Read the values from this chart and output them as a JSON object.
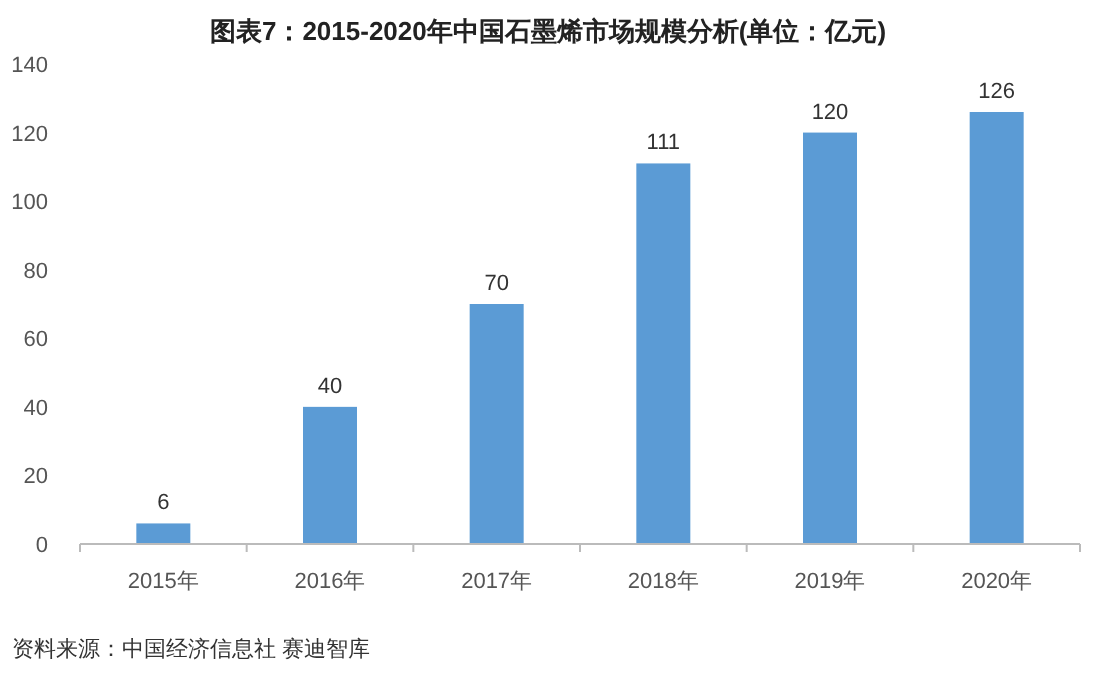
{
  "chart_data": {
    "type": "bar",
    "title": "图表7：2015-2020年中国石墨烯市场规模分析(单位：亿元)",
    "categories": [
      "2015年",
      "2016年",
      "2017年",
      "2018年",
      "2019年",
      "2020年"
    ],
    "values": [
      6,
      40,
      70,
      111,
      120,
      126
    ],
    "color": "#5b9bd5",
    "ylim": [
      0,
      140
    ],
    "yticks": [
      0,
      20,
      40,
      60,
      80,
      100,
      120,
      140
    ],
    "data_labels": true,
    "annotations": [
      "资料来源：中国经济信息社 赛迪智库"
    ]
  }
}
